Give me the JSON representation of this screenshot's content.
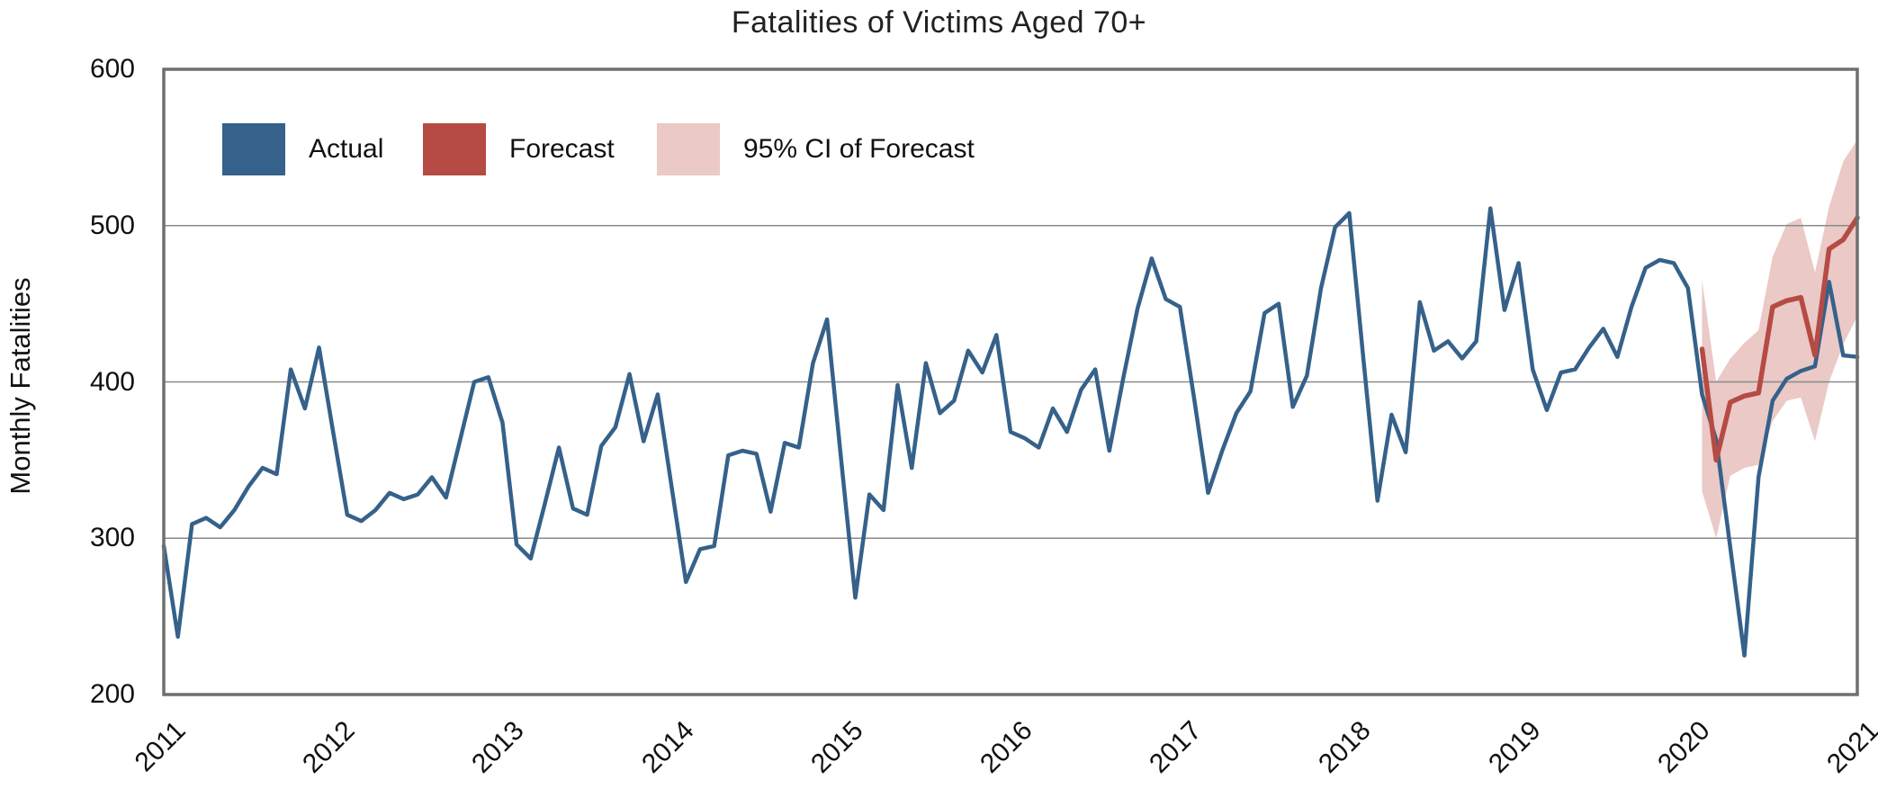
{
  "page": {
    "title": "Fatalities of Victims Aged 70+"
  },
  "axes": {
    "ylabel": "Monthly Fatalities",
    "yticks": [
      200,
      300,
      400,
      500,
      600
    ],
    "gridlines": [
      300,
      400,
      500
    ],
    "xticks": [
      "2011",
      "2012",
      "2013",
      "2014",
      "2015",
      "2016",
      "2017",
      "2018",
      "2019",
      "2020",
      "2021"
    ]
  },
  "legend": {
    "items": [
      {
        "label": "Actual",
        "color": "#35618a"
      },
      {
        "label": "Forecast",
        "color": "#b54b44"
      },
      {
        "label": "95% CI of Forecast",
        "color": "#eac9c6"
      }
    ]
  },
  "colors": {
    "actual": "#35618a",
    "forecast": "#b54b44",
    "ci_band": "#eac9c6",
    "grid": "#8a8a8a",
    "frame": "#6f6f6f",
    "text": "#111111"
  },
  "chart_data": {
    "type": "line",
    "title": "Fatalities of Victims Aged 70+",
    "xlabel": "",
    "ylabel": "Monthly Fatalities",
    "ylim": [
      200,
      600
    ],
    "yticks": [
      200,
      300,
      400,
      500,
      600
    ],
    "x_start": "2011-01",
    "x_end": "2021-01",
    "frequency": "monthly",
    "xtick_labels": [
      "2011",
      "2012",
      "2013",
      "2014",
      "2015",
      "2016",
      "2017",
      "2018",
      "2019",
      "2020",
      "2021"
    ],
    "grid": "horizontal",
    "legend_position": "top-left",
    "series": [
      {
        "name": "Actual",
        "color": "#35618a",
        "start_month_index": 0,
        "values": [
          295,
          237,
          309,
          313,
          307,
          318,
          333,
          345,
          341,
          408,
          383,
          422,
          368,
          315,
          311,
          318,
          329,
          325,
          328,
          339,
          326,
          363,
          400,
          403,
          374,
          296,
          287,
          322,
          358,
          319,
          315,
          359,
          371,
          405,
          362,
          392,
          332,
          272,
          293,
          295,
          353,
          356,
          354,
          317,
          361,
          358,
          412,
          440,
          350,
          262,
          328,
          318,
          398,
          345,
          412,
          380,
          388,
          420,
          406,
          430,
          368,
          364,
          358,
          383,
          368,
          395,
          408,
          356,
          403,
          447,
          479,
          453,
          448,
          390,
          329,
          356,
          380,
          394,
          444,
          450,
          384,
          404,
          460,
          499,
          508,
          415,
          324,
          379,
          355,
          451,
          420,
          426,
          415,
          426,
          511,
          446,
          476,
          408,
          382,
          406,
          408,
          422,
          434,
          416,
          448,
          473,
          478,
          476,
          460,
          392,
          363,
          294,
          225,
          339,
          388,
          402,
          407,
          410,
          464,
          417,
          416
        ]
      },
      {
        "name": "Forecast",
        "color": "#b54b44",
        "start_month_index": 109,
        "values": [
          421,
          350,
          387,
          391,
          393,
          448,
          452,
          454,
          417,
          485,
          491,
          505
        ]
      },
      {
        "name": "95% CI of Forecast",
        "type": "band",
        "color": "#eac9c6",
        "start_month_index": 109,
        "lower": [
          330,
          300,
          340,
          345,
          347,
          375,
          388,
          390,
          362,
          400,
          424,
          442
        ],
        "upper": [
          465,
          400,
          415,
          425,
          433,
          480,
          501,
          505,
          470,
          512,
          541,
          555
        ]
      }
    ]
  }
}
